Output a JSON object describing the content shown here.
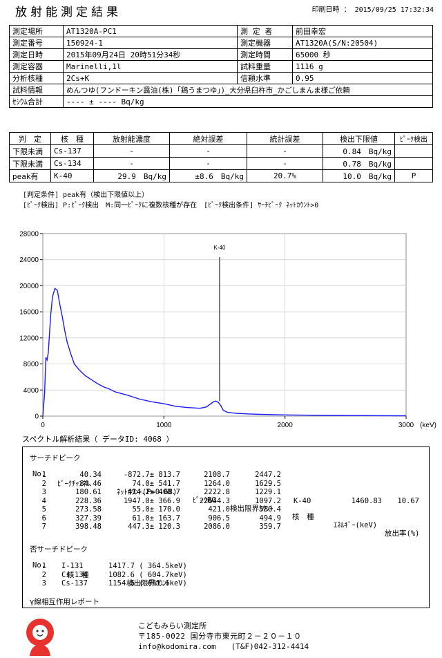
{
  "header": {
    "title": "放射能測定結果",
    "print_datetime": "印刷日時 ： 2015/09/25 17:32:34"
  },
  "info": {
    "rows": [
      [
        "測定場所",
        "AT1320A-PC1",
        "測 定 者",
        "前田幸宏"
      ],
      [
        "測定番号",
        "150924-1",
        "測定機器",
        "AT1320A(S/N:20504)"
      ],
      [
        "測定日時",
        "2015年09月24日 20時51分34秒",
        "測定時間",
        "65000 秒"
      ],
      [
        "測定容器",
        "Marinelli,1l",
        "試料重量",
        "1116 g"
      ],
      [
        "分析核種",
        "2Cs+K",
        "信頼水準",
        "0.95"
      ]
    ],
    "sample_label": "試料情報",
    "sample_value": "めんつゆ(フンドーキン醤油(株)「鶏うまつゆ」)_大分県臼杵市_かごしまんま様ご依頼",
    "cesium_label": "ｾｼｳﾑ合計",
    "cesium_value": "---- ± ---- Bq/kg"
  },
  "results": {
    "headers": [
      "判　定",
      "核　種",
      "放射能濃度",
      "絶対誤差",
      "統計誤差",
      "検出下限値",
      "ﾋﾟｰｸ検出"
    ],
    "rows": [
      [
        "下限未満",
        "Cs-137",
        "-",
        "-",
        "-",
        "0.84　Bq/kg",
        ""
      ],
      [
        "下限未満",
        "Cs-134",
        "-",
        "-",
        "-",
        "0.78　Bq/kg",
        ""
      ],
      [
        "peak有",
        "K-40",
        "29.9　Bq/kg",
        "±8.6　Bq/kg",
        "20.7%",
        "10.0　Bq/kg",
        "P"
      ]
    ]
  },
  "notes": [
    "[判定条件] peak有（検出下限値以上）",
    "[ﾋﾟｰｸ検出] P:ﾋﾟｰｸ検出　M:同一ﾋﾟｰｸに複数核種が存在　[ﾋﾟｰｸ検出条件] ｻｰﾁﾋﾟｰｸ ﾈｯﾄｶｳﾝﾄ>0"
  ],
  "chart_data": {
    "type": "line",
    "x_unit": "(keV)",
    "xlim": [
      0,
      3000
    ],
    "ylim": [
      0,
      28000
    ],
    "x_ticks": [
      0,
      1000,
      2000,
      3000
    ],
    "y_ticks": [
      0,
      4000,
      8000,
      12000,
      16000,
      20000,
      24000,
      28000
    ],
    "annotation": "K-40",
    "annotation_x": 1460,
    "line_color": "#1a1aff",
    "series": [
      {
        "x": [
          0,
          15,
          25,
          35,
          45,
          55,
          65,
          80,
          100,
          120,
          140,
          160,
          180,
          200,
          230,
          260,
          300,
          350,
          400,
          450,
          500,
          550,
          600,
          700,
          800,
          900,
          1000,
          1100,
          1200,
          1300,
          1350,
          1380,
          1410,
          1430,
          1450,
          1470,
          1490,
          1520,
          1560,
          1600,
          1700,
          1800,
          1900,
          2000,
          2200,
          2400,
          2600,
          2800,
          3000
        ],
        "y": [
          0,
          3500,
          9000,
          8600,
          9700,
          12500,
          15500,
          18300,
          19600,
          19300,
          17200,
          15300,
          13200,
          11400,
          9600,
          8000,
          7100,
          6200,
          5600,
          5000,
          4500,
          4150,
          3700,
          3200,
          2600,
          2200,
          1900,
          1500,
          1300,
          1200,
          1400,
          1800,
          2200,
          2300,
          2100,
          1600,
          900,
          600,
          500,
          420,
          330,
          260,
          210,
          180,
          140,
          110,
          90,
          60,
          40
        ]
      }
    ]
  },
  "spectrum": {
    "title": "スペクトル解析結果（ データID: 4068 ）",
    "search_title": "サーチドピーク",
    "search_headers": [
      "No.",
      "ﾋﾟｰｸﾁｬﾝﾈﾙ",
      "ﾈｯﾄｶｳﾝﾄ(P=0.68)",
      "ﾋﾟｰｸBG",
      "検出限界ｶｳﾝﾄ",
      "核　種",
      "ｴﾈﾙｷﾞｰ(keV)",
      "放出率(%)"
    ],
    "search_rows": [
      [
        "1",
        "40.34",
        "-872.7± 813.7",
        "2108.7",
        "2447.2",
        "",
        "",
        ""
      ],
      [
        "2",
        "84.46",
        "74.0± 541.7",
        "1264.0",
        "1629.5",
        "",
        "",
        ""
      ],
      [
        "3",
        "180.61",
        "414.2± 408.7",
        "2222.8",
        "1229.1",
        "",
        "",
        ""
      ],
      [
        "4",
        "228.36",
        "1947.0± 366.9",
        "22644.3",
        "1097.2",
        "K-40",
        "1460.83",
        "10.67"
      ],
      [
        "5",
        "273.58",
        "55.0± 170.0",
        "421.0",
        "580.4",
        "",
        "",
        ""
      ],
      [
        "6",
        "327.39",
        "61.0± 163.7",
        "906.5",
        "494.9",
        "",
        "",
        ""
      ],
      [
        "7",
        "398.48",
        "447.3± 120.3",
        "2086.0",
        "359.7",
        "",
        "",
        ""
      ]
    ],
    "nonsearch_title": "否サーチドピーク",
    "nonsearch_headers": [
      "No.",
      "核　種",
      "検出限界ｶｳﾝﾄ"
    ],
    "nonsearch_rows": [
      [
        "1",
        "I-131",
        "1417.7 ( 364.5keV)"
      ],
      [
        "2",
        "Cs-134",
        "1082.6 ( 604.7keV)"
      ],
      [
        "3",
        "Cs-137",
        "1154.6 ( 661.6keV)"
      ]
    ],
    "gamma_title": "γ線相互作用レポート"
  },
  "footer": {
    "org": "こどもみらい測定所",
    "address": "〒185-0022 国分寺市東元町２－２０－１０",
    "contact": "info@kodomira.com　　(T&F)042-312-4414",
    "logo_color": "#e8322e"
  }
}
